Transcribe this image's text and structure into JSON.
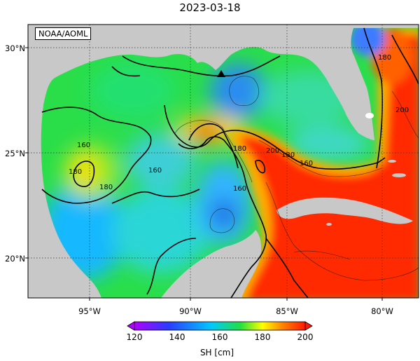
{
  "title": "2023-03-18",
  "credit": "NOAA/AOML",
  "lat_labels": [
    "30°N",
    "25°N",
    "20°N"
  ],
  "lon_labels": [
    "95°W",
    "90°W",
    "85°W",
    "80°W"
  ],
  "contour_labels": [
    "160",
    "180",
    "180",
    "160",
    "180",
    "180",
    "200",
    "160",
    "180",
    "200",
    "160"
  ],
  "colorbar": {
    "title": "SH [cm]",
    "ticks": [
      "120",
      "140",
      "160",
      "180",
      "200"
    ],
    "range": [
      120,
      200
    ],
    "colors": [
      "#b000ff",
      "#2a3cff",
      "#00c8ff",
      "#22e040",
      "#ffff00",
      "#ff8000",
      "#ff1a00"
    ]
  },
  "colors": {
    "land": "#c8c8c8",
    "loop_current": "#ff2200",
    "ocean_mid": "#22e050",
    "ocean_low": "#22b4ff"
  },
  "marker": "triangle-marker"
}
